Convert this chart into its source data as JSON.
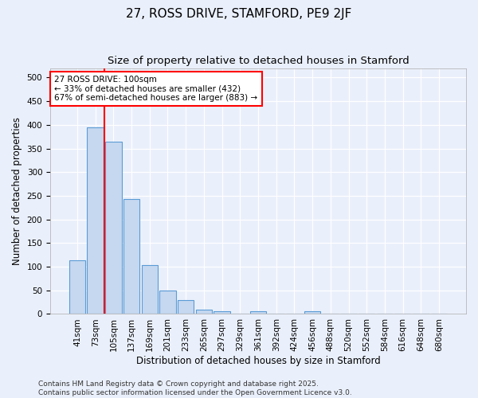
{
  "title": "27, ROSS DRIVE, STAMFORD, PE9 2JF",
  "subtitle": "Size of property relative to detached houses in Stamford",
  "xlabel": "Distribution of detached houses by size in Stamford",
  "ylabel": "Number of detached properties",
  "categories": [
    "41sqm",
    "73sqm",
    "105sqm",
    "137sqm",
    "169sqm",
    "201sqm",
    "233sqm",
    "265sqm",
    "297sqm",
    "329sqm",
    "361sqm",
    "392sqm",
    "424sqm",
    "456sqm",
    "488sqm",
    "520sqm",
    "552sqm",
    "584sqm",
    "616sqm",
    "648sqm",
    "680sqm"
  ],
  "values": [
    113,
    395,
    365,
    243,
    104,
    50,
    30,
    10,
    5,
    0,
    6,
    0,
    0,
    5,
    0,
    0,
    0,
    0,
    0,
    0,
    0
  ],
  "bar_color": "#c5d8f0",
  "bar_edge_color": "#5b9bd5",
  "vline_x_index": 2,
  "vline_color": "red",
  "annotation_line1": "27 ROSS DRIVE: 100sqm",
  "annotation_line2": "← 33% of detached houses are smaller (432)",
  "annotation_line3": "67% of semi-detached houses are larger (883) →",
  "annotation_box_color": "white",
  "annotation_box_edge": "red",
  "footer": "Contains HM Land Registry data © Crown copyright and database right 2025.\nContains public sector information licensed under the Open Government Licence v3.0.",
  "ylim": [
    0,
    520
  ],
  "yticks": [
    0,
    50,
    100,
    150,
    200,
    250,
    300,
    350,
    400,
    450,
    500
  ],
  "bg_color": "#eaf0fb",
  "plot_bg_color": "#eaf0fb",
  "grid_color": "white",
  "title_fontsize": 11,
  "subtitle_fontsize": 9.5,
  "axis_label_fontsize": 8.5,
  "tick_fontsize": 7.5,
  "annotation_fontsize": 7.5,
  "footer_fontsize": 6.5
}
